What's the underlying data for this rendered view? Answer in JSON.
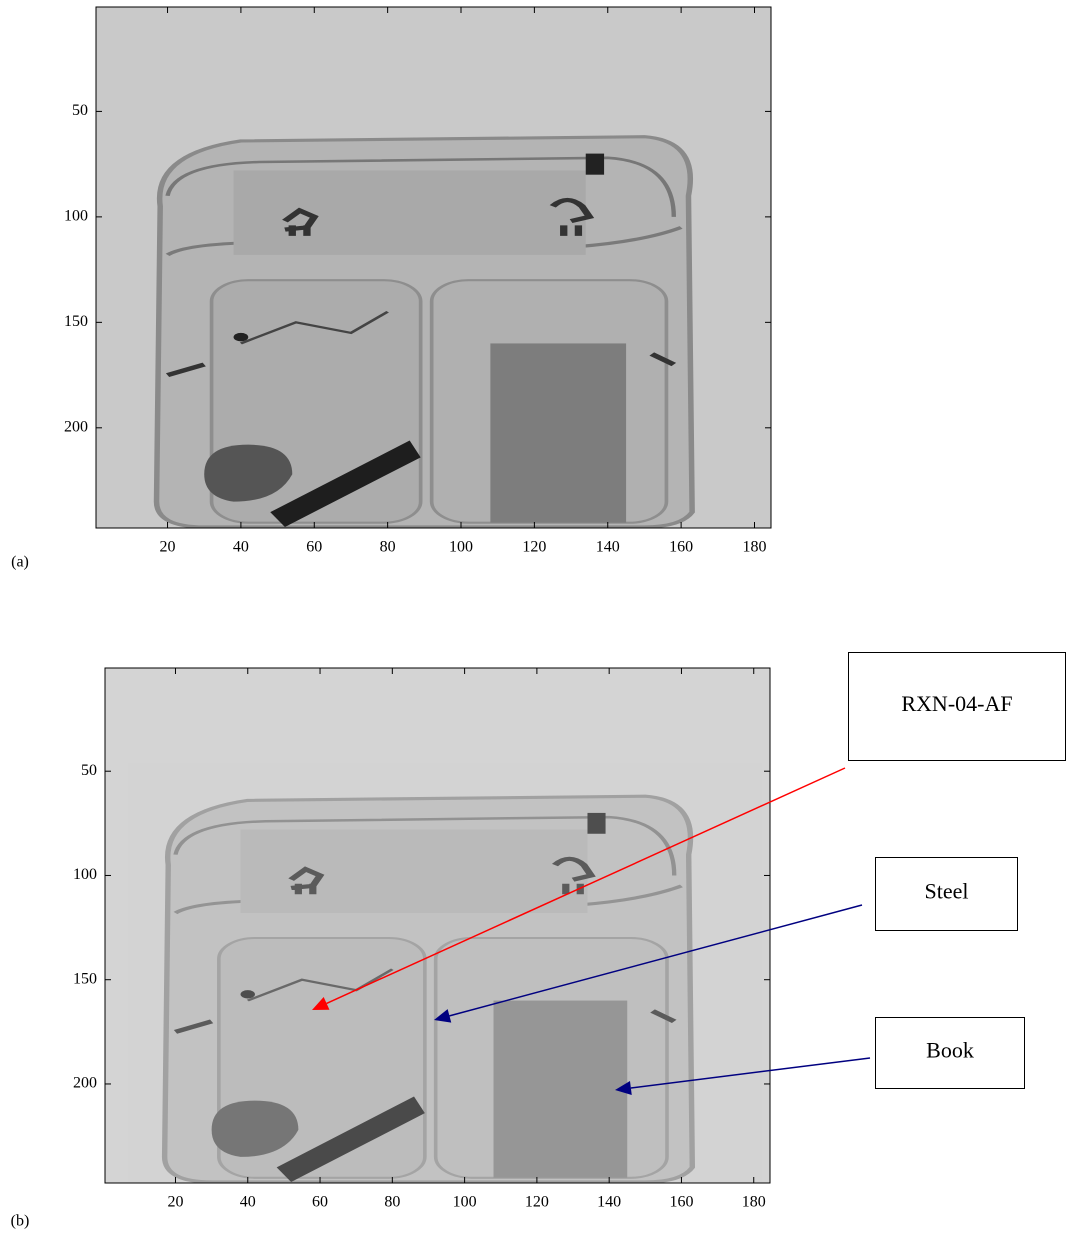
{
  "panels": [
    {
      "label": "(a)",
      "xlim": [
        0.5,
        184.5
      ],
      "ylim": [
        0.5,
        247.5
      ],
      "y_reversed": true,
      "xticks": [
        20,
        40,
        60,
        80,
        100,
        120,
        140,
        160,
        180
      ],
      "yticks": [
        50,
        100,
        150,
        200
      ]
    },
    {
      "label": "(b)",
      "xlim": [
        0.5,
        184.5
      ],
      "ylim": [
        0.5,
        247.5
      ],
      "y_reversed": true,
      "xticks": [
        20,
        40,
        60,
        80,
        100,
        120,
        140,
        160,
        180
      ],
      "yticks": [
        50,
        100,
        150,
        200
      ]
    }
  ],
  "annotations": [
    {
      "text": "RXN-04-AF",
      "color": "#ff0000"
    },
    {
      "text": "Steel",
      "color": "#000080"
    },
    {
      "text": "Book",
      "color": "#000080"
    }
  ]
}
